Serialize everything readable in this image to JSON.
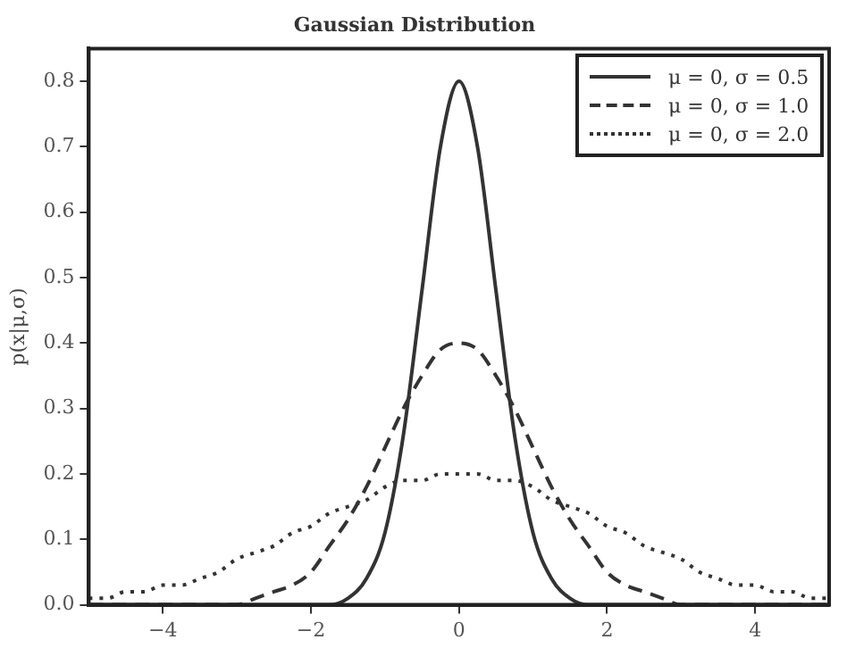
{
  "chart_data": {
    "type": "line",
    "title": "Gaussian Distribution",
    "ylabel": "p(x|μ,σ)",
    "x": [
      -5,
      -4.75,
      -4.5,
      -4.25,
      -4,
      -3.75,
      -3.5,
      -3.25,
      -3,
      -2.75,
      -2.5,
      -2.25,
      -2,
      -1.75,
      -1.5,
      -1.25,
      -1,
      -0.75,
      -0.5,
      -0.25,
      0,
      0.25,
      0.5,
      0.75,
      1,
      1.25,
      1.5,
      1.75,
      2,
      2.25,
      2.5,
      2.75,
      3,
      3.25,
      3.5,
      3.75,
      4,
      4.25,
      4.5,
      4.75,
      5
    ],
    "series": [
      {
        "name": "μ = 0, σ = 0.5",
        "color": "#333333",
        "line_style": "solid",
        "values": [
          0,
          0,
          0,
          0,
          0,
          0,
          0,
          0,
          0,
          0,
          0,
          0,
          0,
          0,
          0.01,
          0.04,
          0.11,
          0.26,
          0.48,
          0.7,
          0.8,
          0.7,
          0.48,
          0.26,
          0.11,
          0.04,
          0.01,
          0,
          0,
          0,
          0,
          0,
          0,
          0,
          0,
          0,
          0,
          0,
          0,
          0,
          0
        ]
      },
      {
        "name": "μ = 0, σ = 1.0",
        "color": "#333333",
        "line_style": "dashed",
        "values": [
          0,
          0,
          0,
          0,
          0,
          0,
          0,
          0,
          0,
          0.01,
          0.02,
          0.03,
          0.05,
          0.09,
          0.13,
          0.18,
          0.24,
          0.3,
          0.35,
          0.39,
          0.4,
          0.39,
          0.35,
          0.3,
          0.24,
          0.18,
          0.13,
          0.09,
          0.05,
          0.03,
          0.02,
          0.01,
          0,
          0,
          0,
          0,
          0,
          0,
          0,
          0,
          0
        ]
      },
      {
        "name": "μ = 0, σ = 2.0",
        "color": "#333333",
        "line_style": "dotted",
        "values": [
          0.01,
          0.01,
          0.02,
          0.02,
          0.03,
          0.03,
          0.04,
          0.05,
          0.07,
          0.08,
          0.09,
          0.11,
          0.12,
          0.14,
          0.15,
          0.16,
          0.18,
          0.19,
          0.19,
          0.2,
          0.2,
          0.2,
          0.19,
          0.19,
          0.18,
          0.16,
          0.15,
          0.14,
          0.12,
          0.11,
          0.09,
          0.08,
          0.07,
          0.05,
          0.04,
          0.03,
          0.03,
          0.02,
          0.02,
          0.01,
          0.01
        ]
      }
    ],
    "xlim": [
      -5,
      5
    ],
    "xticks": [
      -4,
      -2,
      0,
      2,
      4
    ],
    "ylim": [
      0,
      0.85
    ],
    "yticks": [
      {
        "value": 0,
        "label": "0.0"
      },
      0.1,
      0.2,
      0.3,
      0.4,
      0.5,
      0.6,
      0.7,
      0.8
    ],
    "grid": false,
    "legend": "top right",
    "marker": "none"
  }
}
